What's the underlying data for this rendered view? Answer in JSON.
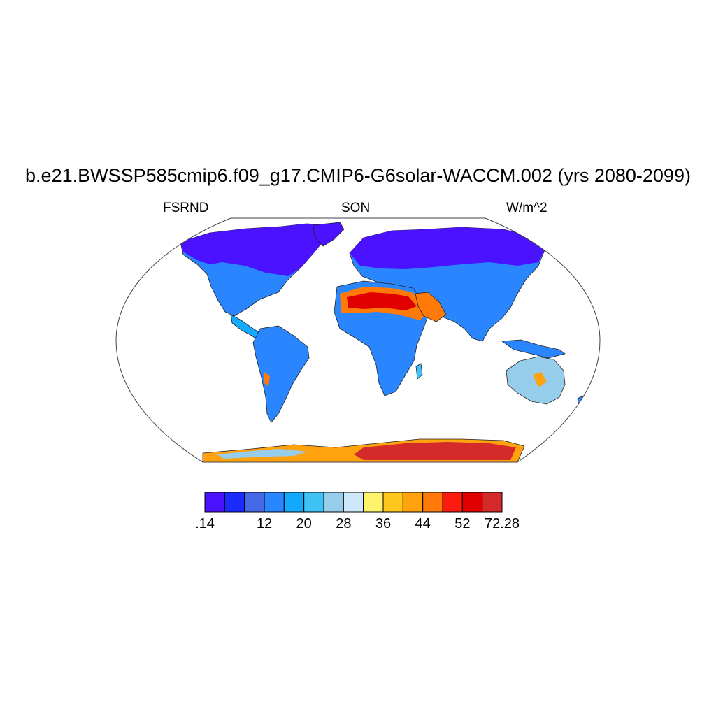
{
  "title": "b.e21.BWSSP585cmip6.f09_g17.CMIP6-G6solar-WACCM.002 (yrs 2080-2099)",
  "left_label": "FSRND",
  "center_label": "SON",
  "right_label": "W/m^2",
  "colorbar": {
    "colors": [
      "#4a12ff",
      "#1a2bff",
      "#4468e6",
      "#2a86ff",
      "#12aaff",
      "#3cc2f5",
      "#96cdeb",
      "#cde8f8",
      "#fff36b",
      "#ffc81e",
      "#ffa20d",
      "#ff7a08",
      "#ff1a10",
      "#e00000",
      "#d42a2a"
    ],
    "labels": [
      ".14",
      "12",
      "20",
      "28",
      "36",
      "44",
      "52",
      "72.28"
    ],
    "label_boundaries": [
      0,
      3,
      5,
      7,
      9,
      11,
      13,
      15
    ]
  }
}
